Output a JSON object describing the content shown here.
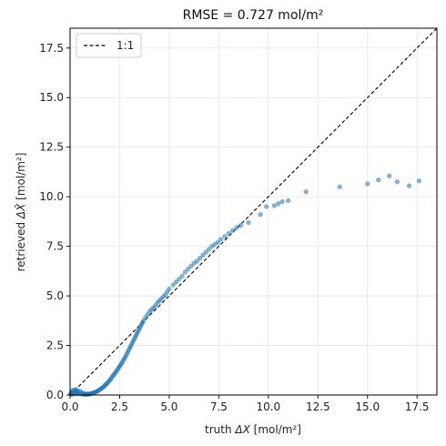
{
  "chart_data": {
    "type": "scatter",
    "title": "RMSE = 0.727 mol/m²",
    "xlabel_prefix": "truth ",
    "xlabel_symbol": "ΔX",
    "xlabel_unit": " [mol/m²]",
    "ylabel_prefix": "retrieved ",
    "ylabel_symbol": "ΔX̂",
    "ylabel_unit": " [mol/m²]",
    "xlim": [
      0,
      18.5
    ],
    "ylim": [
      0,
      18.5
    ],
    "xticks": [
      0.0,
      2.5,
      5.0,
      7.5,
      10.0,
      12.5,
      15.0,
      17.5
    ],
    "yticks": [
      0.0,
      2.5,
      5.0,
      7.5,
      10.0,
      12.5,
      15.0,
      17.5
    ],
    "xtick_labels": [
      "0.0",
      "2.5",
      "5.0",
      "7.5",
      "10.0",
      "12.5",
      "15.0",
      "17.5"
    ],
    "ytick_labels": [
      "0.0",
      "2.5",
      "5.0",
      "7.5",
      "10.0",
      "12.5",
      "15.0",
      "17.5"
    ],
    "grid": true,
    "legend_position": "top-left",
    "point_color": "#1f77b4",
    "reference_line": {
      "label": "1:1",
      "color": "#000000",
      "style": "dashed"
    },
    "series": [
      {
        "points": [
          [
            0.02,
            0.05
          ],
          [
            0.05,
            0.12
          ],
          [
            0.08,
            0.02
          ],
          [
            0.1,
            0.18
          ],
          [
            0.12,
            0.08
          ],
          [
            0.15,
            0.25
          ],
          [
            0.18,
            0.1
          ],
          [
            0.2,
            0.05
          ],
          [
            0.22,
            0.2
          ],
          [
            0.25,
            0.15
          ],
          [
            0.28,
            0.28
          ],
          [
            0.3,
            0.08
          ],
          [
            0.33,
            0.12
          ],
          [
            0.35,
            0.22
          ],
          [
            0.38,
            0.05
          ],
          [
            0.4,
            0.15
          ],
          [
            0.45,
            0.1
          ],
          [
            0.5,
            0.2
          ],
          [
            0.55,
            0.05
          ],
          [
            0.6,
            0.12
          ],
          [
            0.65,
            0.03
          ],
          [
            0.7,
            0.08
          ],
          [
            0.75,
            0.02
          ],
          [
            0.8,
            0.05
          ],
          [
            0.85,
            0.03
          ],
          [
            0.9,
            0.06
          ],
          [
            0.95,
            0.04
          ],
          [
            1.0,
            0.05
          ],
          [
            1.05,
            0.07
          ],
          [
            1.1,
            0.08
          ],
          [
            1.15,
            0.1
          ],
          [
            1.2,
            0.12
          ],
          [
            1.25,
            0.13
          ],
          [
            1.3,
            0.15
          ],
          [
            1.35,
            0.18
          ],
          [
            1.4,
            0.2
          ],
          [
            1.45,
            0.24
          ],
          [
            1.5,
            0.28
          ],
          [
            1.55,
            0.3
          ],
          [
            1.6,
            0.35
          ],
          [
            1.65,
            0.38
          ],
          [
            1.7,
            0.42
          ],
          [
            1.75,
            0.48
          ],
          [
            1.8,
            0.52
          ],
          [
            1.85,
            0.58
          ],
          [
            1.9,
            0.62
          ],
          [
            1.95,
            0.68
          ],
          [
            2.0,
            0.75
          ],
          [
            2.05,
            0.8
          ],
          [
            2.1,
            0.88
          ],
          [
            2.15,
            0.95
          ],
          [
            2.2,
            1.02
          ],
          [
            2.25,
            1.08
          ],
          [
            2.3,
            1.15
          ],
          [
            2.35,
            1.22
          ],
          [
            2.4,
            1.3
          ],
          [
            2.45,
            1.38
          ],
          [
            2.5,
            1.45
          ],
          [
            2.55,
            1.52
          ],
          [
            2.6,
            1.6
          ],
          [
            2.65,
            1.68
          ],
          [
            2.7,
            1.78
          ],
          [
            2.75,
            1.86
          ],
          [
            2.8,
            1.95
          ],
          [
            2.85,
            2.05
          ],
          [
            2.9,
            2.15
          ],
          [
            2.95,
            2.25
          ],
          [
            3.0,
            2.35
          ],
          [
            3.05,
            2.45
          ],
          [
            3.1,
            2.55
          ],
          [
            3.15,
            2.65
          ],
          [
            3.2,
            2.75
          ],
          [
            3.25,
            2.85
          ],
          [
            3.3,
            2.95
          ],
          [
            3.35,
            3.05
          ],
          [
            3.4,
            3.15
          ],
          [
            3.45,
            3.25
          ],
          [
            3.5,
            3.35
          ],
          [
            3.55,
            3.45
          ],
          [
            3.6,
            3.55
          ],
          [
            3.65,
            3.65
          ],
          [
            3.7,
            3.75
          ],
          [
            3.8,
            3.9
          ],
          [
            3.9,
            4.05
          ],
          [
            4.0,
            4.2
          ],
          [
            4.1,
            4.3
          ],
          [
            4.2,
            4.4
          ],
          [
            4.3,
            4.5
          ],
          [
            4.4,
            4.65
          ],
          [
            4.5,
            4.75
          ],
          [
            4.6,
            4.85
          ],
          [
            4.7,
            4.95
          ],
          [
            4.8,
            5.05
          ],
          [
            4.9,
            5.2
          ],
          [
            5.0,
            5.35
          ],
          [
            5.2,
            5.55
          ],
          [
            5.35,
            5.7
          ],
          [
            5.5,
            5.85
          ],
          [
            5.65,
            6.0
          ],
          [
            5.8,
            6.2
          ],
          [
            5.95,
            6.35
          ],
          [
            6.1,
            6.5
          ],
          [
            6.25,
            6.65
          ],
          [
            6.4,
            6.75
          ],
          [
            6.55,
            6.9
          ],
          [
            6.7,
            7.05
          ],
          [
            6.85,
            7.2
          ],
          [
            7.0,
            7.35
          ],
          [
            7.15,
            7.5
          ],
          [
            7.3,
            7.6
          ],
          [
            7.45,
            7.7
          ],
          [
            7.6,
            7.85
          ],
          [
            7.8,
            8.0
          ],
          [
            8.0,
            8.15
          ],
          [
            8.2,
            8.3
          ],
          [
            8.4,
            8.45
          ],
          [
            8.6,
            8.55
          ],
          [
            9.0,
            8.7
          ],
          [
            9.6,
            9.1
          ],
          [
            9.9,
            9.5
          ],
          [
            10.3,
            9.55
          ],
          [
            10.5,
            9.65
          ],
          [
            10.7,
            9.75
          ],
          [
            11.0,
            9.8
          ],
          [
            11.9,
            10.25
          ],
          [
            13.6,
            10.5
          ],
          [
            15.0,
            10.65
          ],
          [
            15.55,
            10.85
          ],
          [
            16.1,
            11.05
          ],
          [
            16.5,
            10.75
          ],
          [
            17.1,
            10.55
          ],
          [
            17.6,
            10.8
          ]
        ]
      }
    ]
  }
}
